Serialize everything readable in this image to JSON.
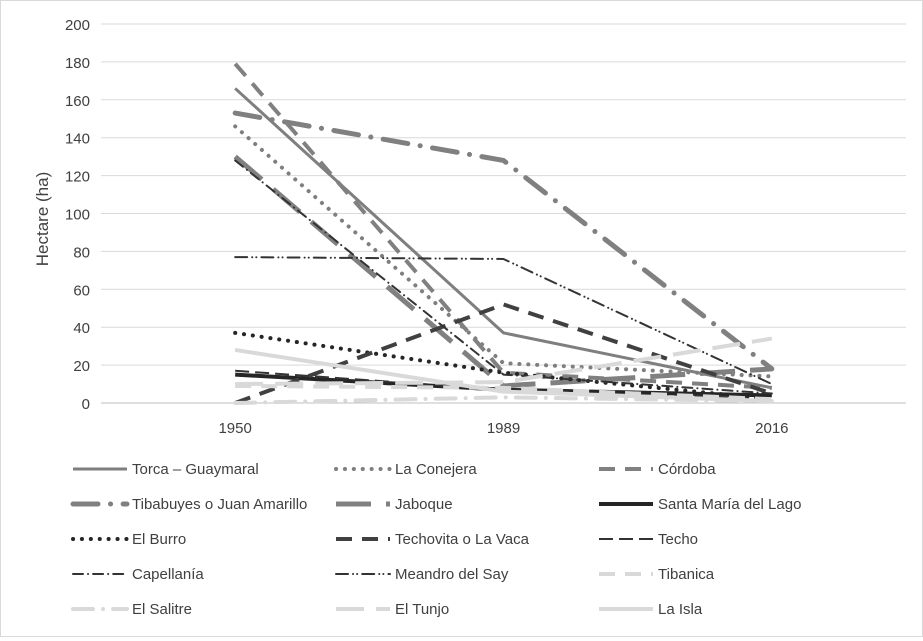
{
  "chart_data": {
    "type": "line",
    "title": "",
    "xlabel": "",
    "ylabel": "Hectare (ha)",
    "categories": [
      "1950",
      "1989",
      "2016"
    ],
    "ylim": [
      0,
      200
    ],
    "yticks": [
      "0",
      "20",
      "40",
      "60",
      "80",
      "100",
      "120",
      "140",
      "160",
      "180",
      "200"
    ],
    "grid": "horizontal",
    "legend_position": "bottom",
    "series": [
      {
        "name": "Torca – Guaymaral",
        "values": [
          166,
          37,
          8
        ],
        "color": "#7f7f7f",
        "style": "solid",
        "width": 3
      },
      {
        "name": "La Conejera",
        "values": [
          146,
          21,
          14
        ],
        "color": "#7f7f7f",
        "style": "dot",
        "width": 4
      },
      {
        "name": "Córdoba",
        "values": [
          179,
          16,
          8
        ],
        "color": "#808080",
        "style": "dash",
        "width": 4
      },
      {
        "name": "Tibabuyes o Juan Amarillo",
        "values": [
          153,
          128,
          18
        ],
        "color": "#808080",
        "style": "dashdot",
        "width": 5
      },
      {
        "name": "Jaboque",
        "values": [
          130,
          9,
          18
        ],
        "color": "#808080",
        "style": "longdash",
        "width": 5
      },
      {
        "name": "Santa María del Lago",
        "values": [
          15,
          7,
          4
        ],
        "color": "#262626",
        "style": "solid",
        "width": 4
      },
      {
        "name": "El Burro",
        "values": [
          37,
          16,
          2
        ],
        "color": "#262626",
        "style": "dot",
        "width": 4
      },
      {
        "name": "Techovita o La Vaca",
        "values": [
          0,
          52,
          5
        ],
        "color": "#404040",
        "style": "dash",
        "width": 4
      },
      {
        "name": "Techo",
        "values": [
          17,
          7,
          2
        ],
        "color": "#333333",
        "style": "longdash",
        "width": 2
      },
      {
        "name": "Capellanía",
        "values": [
          128,
          15,
          5
        ],
        "color": "#333333",
        "style": "dashdot",
        "width": 2
      },
      {
        "name": "Meandro del Say",
        "values": [
          77,
          76,
          10
        ],
        "color": "#333333",
        "style": "dashdotdot",
        "width": 2
      },
      {
        "name": "Tibanica",
        "values": [
          9,
          8,
          2
        ],
        "color": "#d9d9d9",
        "style": "dash",
        "width": 4
      },
      {
        "name": "El Salitre",
        "values": [
          0,
          3,
          1
        ],
        "color": "#d9d9d9",
        "style": "dashdot",
        "width": 4
      },
      {
        "name": "El Tunjo",
        "values": [
          10,
          11,
          34
        ],
        "color": "#d9d9d9",
        "style": "longdash",
        "width": 4
      },
      {
        "name": "La Isla",
        "values": [
          28,
          6,
          1
        ],
        "color": "#d9d9d9",
        "style": "solid",
        "width": 4
      }
    ]
  }
}
